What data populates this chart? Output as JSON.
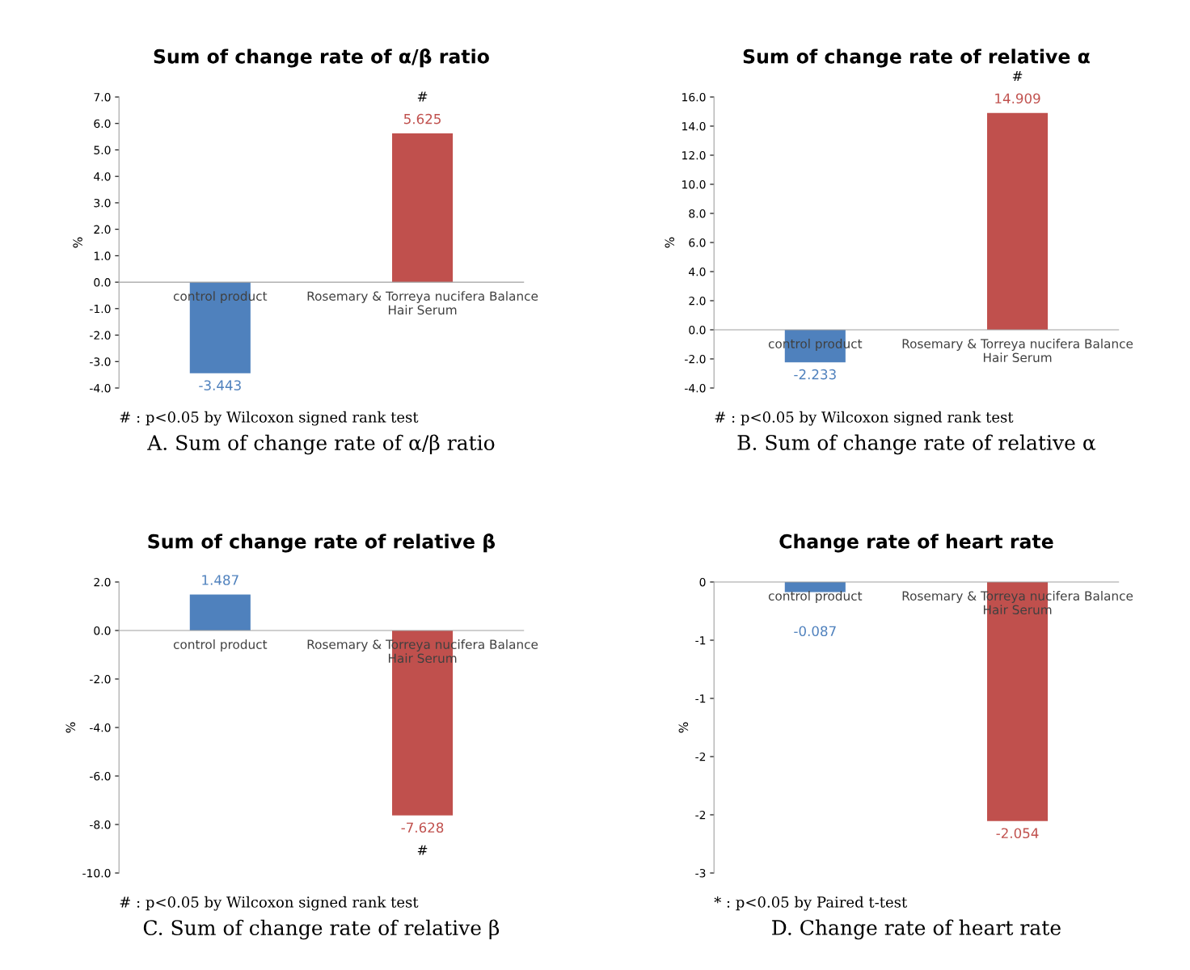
{
  "chart_data": [
    {
      "type": "bar",
      "title": "Sum of change rate of α/β ratio",
      "ylabel": "%",
      "categories": [
        "control product",
        "Rosemary & Torreya nucifera Balance Hair Serum"
      ],
      "values": [
        -3.443,
        5.625
      ],
      "colors": [
        "#4f81bd",
        "#c0504d"
      ],
      "data_labels": true,
      "ylim": [
        -4,
        7
      ],
      "yticks": [
        {
          "value": -4,
          "label": "-4.0"
        },
        {
          "value": -3,
          "label": "-3.0"
        },
        {
          "value": -2,
          "label": "-2.0"
        },
        {
          "value": -1,
          "label": "-1.0"
        },
        {
          "value": 0,
          "label": "0.0"
        },
        {
          "value": 1,
          "label": "1.0"
        },
        {
          "value": 2,
          "label": "2.0"
        },
        {
          "value": 3,
          "label": "3.0"
        },
        {
          "value": 4,
          "label": "4.0"
        },
        {
          "value": 5,
          "label": "5.0"
        },
        {
          "value": 6,
          "label": "6.0"
        },
        {
          "value": 7,
          "label": "7.0"
        }
      ],
      "annotations": [
        {
          "text": "#",
          "x": "Rosemary & Torreya nucifera Balance Hair Serum",
          "y": 5.625
        },
        "# : p<0.05 by Wilcoxon signed rank test",
        "A. Sum of change rate of α/β ratio"
      ]
    },
    {
      "type": "bar",
      "title": "Sum of change rate of relative α",
      "ylabel": "%",
      "categories": [
        "control product",
        "Rosemary & Torreya nucifera Balance Hair Serum"
      ],
      "values": [
        -2.233,
        14.909
      ],
      "colors": [
        "#4f81bd",
        "#c0504d"
      ],
      "data_labels": true,
      "ylim": [
        -4,
        16
      ],
      "yticks": [
        {
          "value": -4,
          "label": "-4.0"
        },
        {
          "value": -2,
          "label": "-2.0"
        },
        {
          "value": 0,
          "label": "0.0"
        },
        {
          "value": 2,
          "label": "2.0"
        },
        {
          "value": 4,
          "label": "4.0"
        },
        {
          "value": 6,
          "label": "6.0"
        },
        {
          "value": 8,
          "label": "8.0"
        },
        {
          "value": 10,
          "label": "10.0"
        },
        {
          "value": 12,
          "label": "12.0"
        },
        {
          "value": 14,
          "label": "14.0"
        },
        {
          "value": 16,
          "label": "16.0"
        }
      ],
      "annotations": [
        {
          "text": "#",
          "x": "Rosemary & Torreya nucifera Balance Hair Serum",
          "y": 14.909
        },
        "# : p<0.05 by Wilcoxon signed rank test",
        "B. Sum of change rate of relative α"
      ]
    },
    {
      "type": "bar",
      "title": "Sum of change rate of relative β",
      "ylabel": "%",
      "categories": [
        "control product",
        "Rosemary & Torreya nucifera Balance Hair Serum"
      ],
      "values": [
        1.487,
        -7.628
      ],
      "colors": [
        "#4f81bd",
        "#c0504d"
      ],
      "data_labels": true,
      "ylim": [
        -10,
        2
      ],
      "yticks": [
        {
          "value": -10,
          "label": "-10.0"
        },
        {
          "value": -8,
          "label": "-8.0"
        },
        {
          "value": -6,
          "label": "-6.0"
        },
        {
          "value": -4,
          "label": "-4.0"
        },
        {
          "value": -2,
          "label": "-2.0"
        },
        {
          "value": 0,
          "label": "0.0"
        },
        {
          "value": 2,
          "label": "2.0"
        }
      ],
      "annotations": [
        {
          "text": "#",
          "x": "Rosemary & Torreya nucifera Balance Hair Serum",
          "y": -7.628
        },
        "# : p<0.05 by Wilcoxon signed rank test",
        "C. Sum of change rate of relative β"
      ]
    },
    {
      "type": "bar",
      "title": "Change rate of heart rate",
      "ylabel": "%",
      "categories": [
        "control product",
        "Rosemary & Torreya nucifera Balance Hair Serum"
      ],
      "values": [
        -0.087,
        -2.054
      ],
      "colors": [
        "#4f81bd",
        "#c0504d"
      ],
      "data_labels": true,
      "ylim": [
        -2.5,
        0
      ],
      "yticks": [
        {
          "value": -2.5,
          "label": "-3"
        },
        {
          "value": -2,
          "label": "-2"
        },
        {
          "value": -1.5,
          "label": "-2"
        },
        {
          "value": -1,
          "label": "-1"
        },
        {
          "value": -0.5,
          "label": "-1"
        },
        0
      ],
      "annotations": [
        "* : p<0.05 by Paired t-test",
        "D. Change rate of heart rate"
      ]
    }
  ]
}
